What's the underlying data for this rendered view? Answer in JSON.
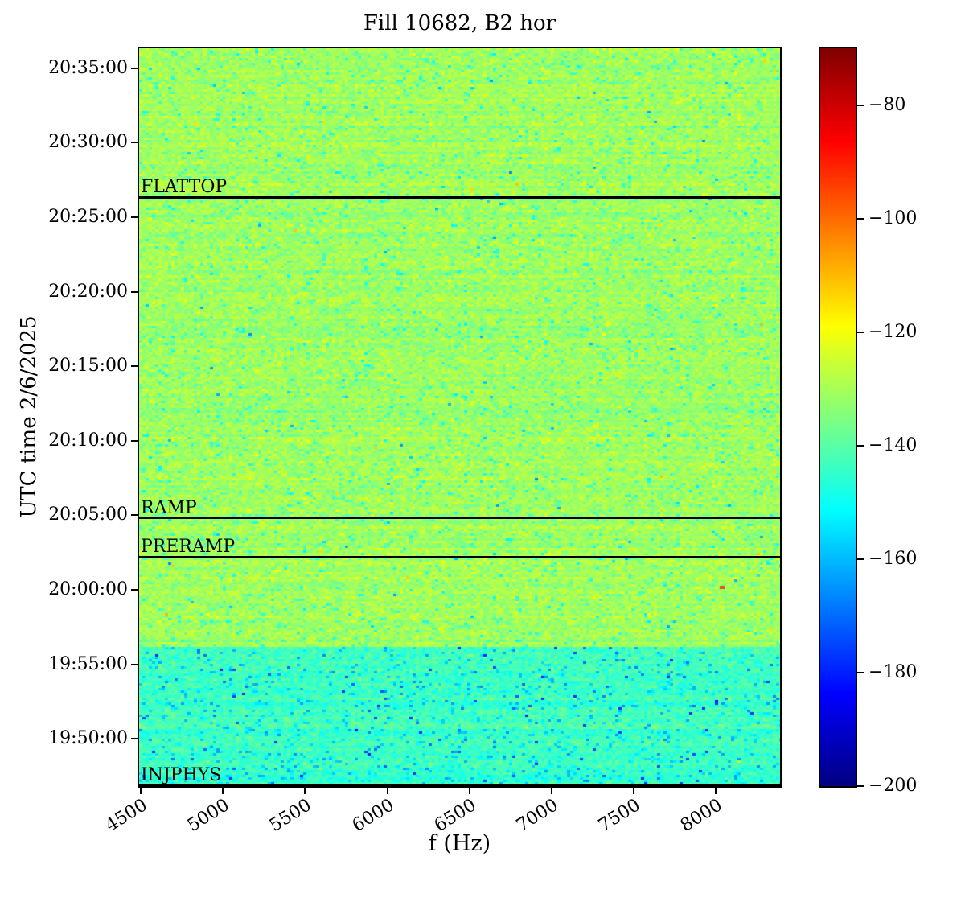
{
  "chart_data": {
    "type": "heatmap",
    "title": "Fill 10682, B2 hor",
    "xlabel": "f (Hz)",
    "ylabel": "UTC time 2/6/2025",
    "x_axis": {
      "unit": "Hz",
      "min": 4490,
      "max": 8390,
      "tick_labels": [
        "4500",
        "5000",
        "5500",
        "6000",
        "6500",
        "7000",
        "7500",
        "8000"
      ],
      "tick_values": [
        4500,
        5000,
        5500,
        6000,
        6500,
        7000,
        7500,
        8000
      ]
    },
    "y_axis": {
      "date": "2/6/2025",
      "time_start": "19:46:50",
      "time_end": "20:36:20",
      "tick_labels": [
        "20:35:00",
        "20:30:00",
        "20:25:00",
        "20:20:00",
        "20:15:00",
        "20:10:00",
        "20:05:00",
        "20:00:00",
        "19:55:00",
        "19:50:00"
      ]
    },
    "colorbar": {
      "colormap": "jet",
      "vmin": -200,
      "vmax": -70,
      "tick_labels": [
        "−80",
        "−100",
        "−120",
        "−140",
        "−160",
        "−180",
        "−200"
      ],
      "tick_values": [
        -80,
        -100,
        -120,
        -140,
        -160,
        -180,
        -200
      ]
    },
    "beam_mode_events": [
      {
        "label": "FLATTOP",
        "time": "20:26:20"
      },
      {
        "label": "RAMP",
        "time": "20:04:50"
      },
      {
        "label": "PRERAMP",
        "time": "20:02:12"
      },
      {
        "label": "INJPHYS",
        "time": "19:46:50"
      }
    ],
    "noise_regions": [
      {
        "from": "19:46:50",
        "to": "19:56:10",
        "mean_db": -143.5,
        "sigma_db": 3.0,
        "dip_prob": 0.09,
        "dip_db": 12,
        "deep_dip_prob": 0.012,
        "deep_dip_db": 28,
        "spike_prob": 0.003,
        "spike_db": 8
      },
      {
        "from": "19:56:10",
        "to": "20:36:20",
        "mean_db": -131.0,
        "sigma_db": 3.2,
        "dip_prob": 0.055,
        "dip_db": 12,
        "deep_dip_prob": 0.003,
        "deep_dip_db": 24,
        "spike_prob": 0.004,
        "spike_db": 10
      }
    ],
    "hotspot": {
      "time": "20:00:10",
      "f_hz": 8040,
      "db": -95
    }
  }
}
